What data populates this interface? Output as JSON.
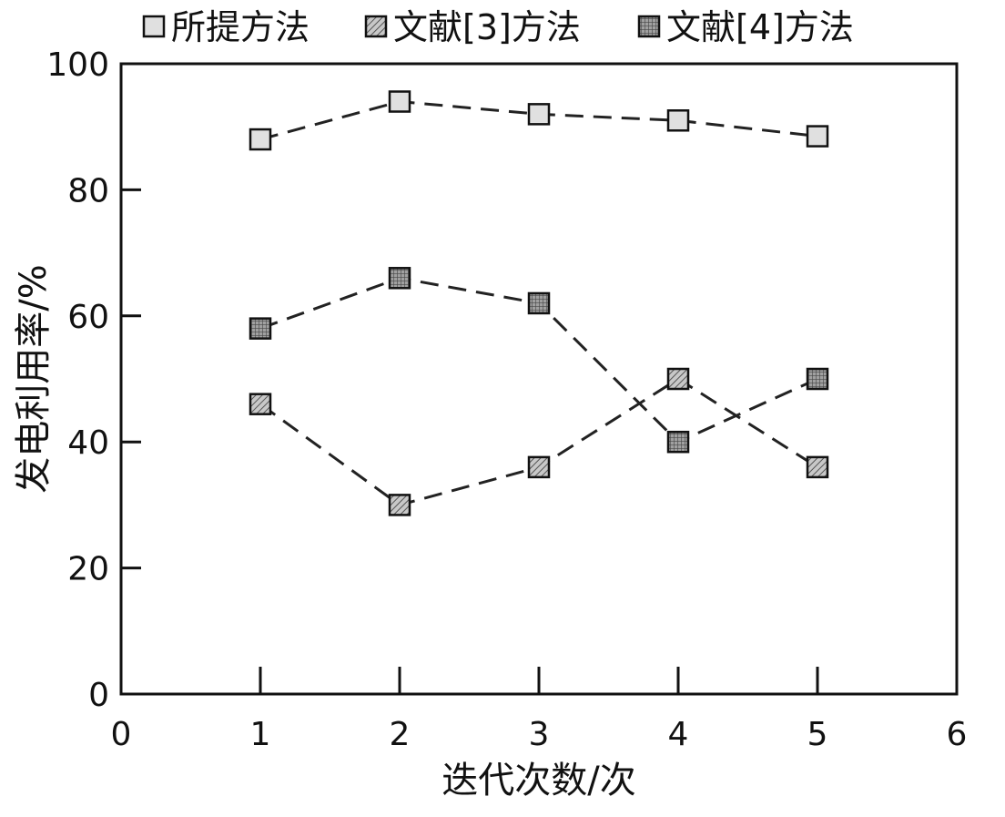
{
  "chart_data": {
    "type": "line",
    "title": "",
    "xlabel": "迭代次数/次",
    "ylabel": "发电利用率/%",
    "xlim": [
      0,
      6
    ],
    "ylim": [
      0,
      100
    ],
    "x_ticks": [
      0,
      1,
      2,
      3,
      4,
      5,
      6
    ],
    "y_ticks": [
      0,
      20,
      40,
      60,
      80,
      100
    ],
    "grid": false,
    "legend_position": "top",
    "x": [
      1,
      2,
      3,
      4,
      5
    ],
    "series": [
      {
        "name": "所提方法",
        "values": [
          88,
          94,
          92,
          91,
          88.5
        ],
        "marker": "square-light",
        "fill": "#e0e0e0",
        "line_style": "dashed"
      },
      {
        "name": "文献[3]方法",
        "values": [
          46,
          30,
          36,
          50,
          36
        ],
        "marker": "square-hatched",
        "fill": "#b0b0b0",
        "line_style": "dashed"
      },
      {
        "name": "文献[4]方法",
        "values": [
          58,
          66,
          62,
          40,
          50
        ],
        "marker": "square-grid",
        "fill": "#8a8a8a",
        "line_style": "dashed"
      }
    ]
  }
}
